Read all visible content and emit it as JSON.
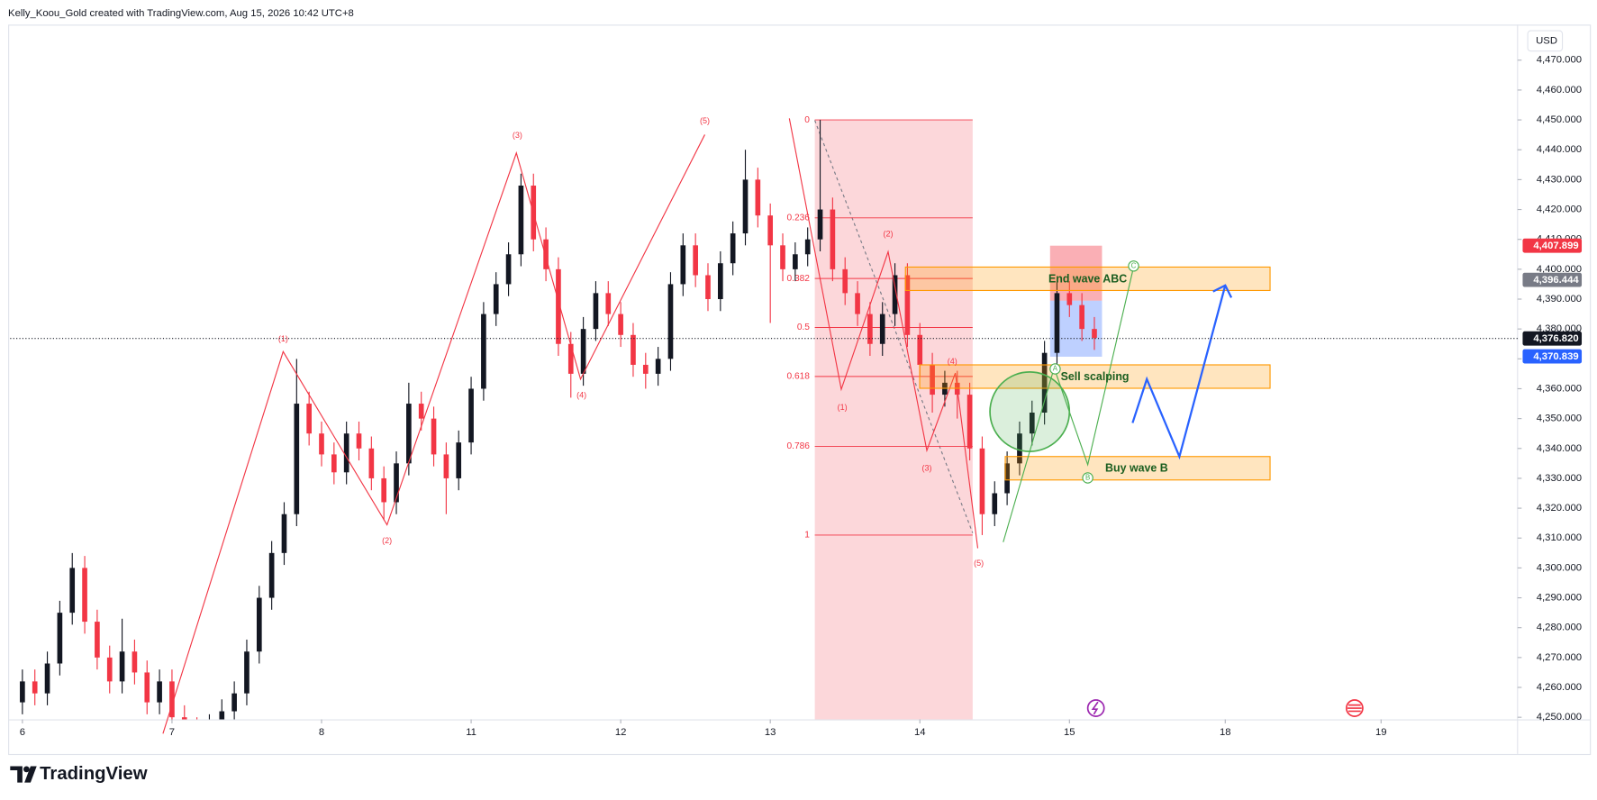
{
  "header": "Kelly_Koou_Gold created with TradingView.com, Aug 15, 2026 10:42 UTC+8",
  "brand": "TradingView",
  "chart_data": {
    "type": "candlestick",
    "currency": "USD",
    "up_color": "#131722",
    "down_color": "#f23645",
    "grid": false,
    "x": [
      0,
      2,
      4,
      6,
      8,
      10,
      12,
      14,
      16,
      18,
      20,
      22,
      24,
      26,
      28,
      30,
      32,
      34,
      36,
      38,
      40,
      42,
      44,
      46,
      48,
      50,
      52,
      54,
      56,
      58,
      60,
      62,
      64,
      66,
      68,
      70,
      72,
      74,
      76,
      78,
      80,
      82,
      84,
      86,
      88,
      90,
      92,
      94,
      96,
      98,
      100,
      102,
      104,
      106,
      108,
      110,
      112,
      114,
      116,
      118,
      120,
      122,
      124,
      126,
      128,
      130,
      132,
      134,
      136,
      138,
      140,
      142,
      144,
      146,
      148,
      150,
      152,
      154,
      156,
      158,
      160,
      162,
      164,
      166,
      168,
      170,
      172
    ],
    "open": [
      4255,
      4262,
      4258,
      4268,
      4285,
      4300,
      4282,
      4270,
      4262,
      4272,
      4265,
      4255,
      4262,
      4250,
      4246,
      4244,
      4247,
      4252,
      4258,
      4272,
      4290,
      4305,
      4318,
      4355,
      4345,
      4338,
      4332,
      4345,
      4340,
      4330,
      4322,
      4335,
      4355,
      4350,
      4338,
      4330,
      4342,
      4360,
      4385,
      4395,
      4405,
      4428,
      4410,
      4400,
      4375,
      4365,
      4380,
      4392,
      4385,
      4378,
      4368,
      4365,
      4370,
      4395,
      4408,
      4398,
      4390,
      4402,
      4412,
      4430,
      4418,
      4408,
      4400,
      4405,
      4410,
      4420,
      4400,
      4392,
      4385,
      4375,
      4385,
      4398,
      4378,
      4368,
      4358,
      4362,
      4358,
      4340,
      4318,
      4325,
      4335,
      4345,
      4352,
      4372,
      4392,
      4388,
      4380
    ],
    "high": [
      4266,
      4266,
      4272,
      4289,
      4305,
      4304,
      4286,
      4274,
      4283,
      4276,
      4269,
      4266,
      4266,
      4254,
      4250,
      4251,
      4256,
      4262,
      4276,
      4294,
      4309,
      4322,
      4370,
      4359,
      4349,
      4342,
      4349,
      4349,
      4344,
      4334,
      4339,
      4362,
      4359,
      4354,
      4342,
      4346,
      4364,
      4389,
      4399,
      4409,
      4432,
      4432,
      4414,
      4404,
      4379,
      4384,
      4396,
      4396,
      4389,
      4382,
      4372,
      4374,
      4399,
      4412,
      4412,
      4402,
      4406,
      4416,
      4440,
      4434,
      4422,
      4412,
      4409,
      4414,
      4450,
      4424,
      4404,
      4396,
      4389,
      4389,
      4402,
      4402,
      4382,
      4372,
      4366,
      4366,
      4362,
      4344,
      4329,
      4339,
      4349,
      4356,
      4376,
      4396,
      4396,
      4392,
      4384
    ],
    "low": [
      4251,
      4254,
      4254,
      4264,
      4281,
      4278,
      4266,
      4258,
      4258,
      4261,
      4251,
      4251,
      4246,
      4242,
      4240,
      4240,
      4243,
      4248,
      4254,
      4268,
      4286,
      4301,
      4314,
      4341,
      4334,
      4328,
      4328,
      4336,
      4326,
      4316,
      4318,
      4331,
      4346,
      4334,
      4318,
      4326,
      4338,
      4356,
      4381,
      4391,
      4401,
      4406,
      4396,
      4371,
      4357,
      4361,
      4376,
      4381,
      4374,
      4364,
      4360,
      4361,
      4366,
      4391,
      4394,
      4386,
      4386,
      4398,
      4408,
      4414,
      4382,
      4396,
      4396,
      4401,
      4406,
      4396,
      4388,
      4381,
      4371,
      4371,
      4381,
      4374,
      4364,
      4352,
      4354,
      4350,
      4336,
      4311,
      4314,
      4321,
      4331,
      4341,
      4348,
      4368,
      4384,
      4376,
      4373
    ],
    "close": [
      4262,
      4258,
      4268,
      4285,
      4300,
      4282,
      4270,
      4262,
      4272,
      4265,
      4255,
      4262,
      4250,
      4246,
      4244,
      4247,
      4252,
      4258,
      4272,
      4290,
      4305,
      4318,
      4355,
      4345,
      4338,
      4332,
      4345,
      4340,
      4330,
      4322,
      4335,
      4355,
      4350,
      4338,
      4330,
      4342,
      4360,
      4385,
      4395,
      4405,
      4428,
      4410,
      4400,
      4375,
      4365,
      4380,
      4392,
      4385,
      4378,
      4368,
      4365,
      4370,
      4395,
      4408,
      4398,
      4390,
      4402,
      4412,
      4430,
      4418,
      4408,
      4400,
      4405,
      4410,
      4420,
      4400,
      4392,
      4385,
      4375,
      4385,
      4398,
      4378,
      4368,
      4358,
      4362,
      4358,
      4340,
      4318,
      4325,
      4335,
      4345,
      4352,
      4372,
      4392,
      4388,
      4380,
      4377
    ],
    "xlim": [
      -1.96,
      239.9
    ],
    "xticks": [
      {
        "value": 0,
        "label": "6"
      },
      {
        "value": 24,
        "label": "7"
      },
      {
        "value": 48,
        "label": "8"
      },
      {
        "value": 72,
        "label": "11"
      },
      {
        "value": 96,
        "label": "12"
      },
      {
        "value": 120,
        "label": "13"
      },
      {
        "value": 144,
        "label": "14"
      },
      {
        "value": 168,
        "label": "15"
      },
      {
        "value": 193,
        "label": "18"
      },
      {
        "value": 218,
        "label": "19"
      }
    ],
    "ylim": [
      4249.3,
      4481.9
    ],
    "yticks": [
      {
        "value": 4250,
        "label": "4,250.000"
      },
      {
        "value": 4260,
        "label": "4,260.000"
      },
      {
        "value": 4270,
        "label": "4,270.000"
      },
      {
        "value": 4280,
        "label": "4,280.000"
      },
      {
        "value": 4290,
        "label": "4,290.000"
      },
      {
        "value": 4300,
        "label": "4,300.000"
      },
      {
        "value": 4310,
        "label": "4,310.000"
      },
      {
        "value": 4320,
        "label": "4,320.000"
      },
      {
        "value": 4330,
        "label": "4,330.000"
      },
      {
        "value": 4340,
        "label": "4,340.000"
      },
      {
        "value": 4350,
        "label": "4,350.000"
      },
      {
        "value": 4360,
        "label": "4,360.000"
      },
      {
        "value": 4370,
        "label": "4,370.000"
      },
      {
        "value": 4380,
        "label": "4,380.000"
      },
      {
        "value": 4390,
        "label": "4,390.000"
      },
      {
        "value": 4400,
        "label": "4,400.000"
      },
      {
        "value": 4410,
        "label": "4,410.000"
      },
      {
        "value": 4420,
        "label": "4,420.000"
      },
      {
        "value": 4430,
        "label": "4,430.000"
      },
      {
        "value": 4440,
        "label": "4,440.000"
      },
      {
        "value": 4450,
        "label": "4,450.000"
      },
      {
        "value": 4460,
        "label": "4,460.000"
      },
      {
        "value": 4470,
        "label": "4,470.000"
      }
    ],
    "last_price": {
      "value": 4376.82,
      "label": "4,376.820",
      "color": "#131722"
    },
    "price_labels": [
      {
        "value": 4407.899,
        "label": "4,407.899",
        "color": "#f23645"
      },
      {
        "value": 4396.444,
        "label": "4,396.444",
        "color": "#787b86"
      },
      {
        "value": 4370.839,
        "label": "4,370.839",
        "color": "#2962ff"
      }
    ],
    "fib": {
      "levels": [
        0,
        0.236,
        0.382,
        0.5,
        0.618,
        0.786,
        1
      ],
      "prices": [
        4450,
        4417.2,
        4396.9,
        4380.5,
        4364.1,
        4340.7,
        4311
      ]
    },
    "wave_labels": [
      "(1)",
      "(2)",
      "(3)",
      "(4)",
      "(5)",
      "(1)",
      "(2)",
      "(3)",
      "(4)",
      "(5)"
    ],
    "abc_labels": [
      "A",
      "B",
      "C"
    ],
    "zones": [
      "End wave ABC",
      "Sell scalping",
      "Buy wave B"
    ]
  }
}
